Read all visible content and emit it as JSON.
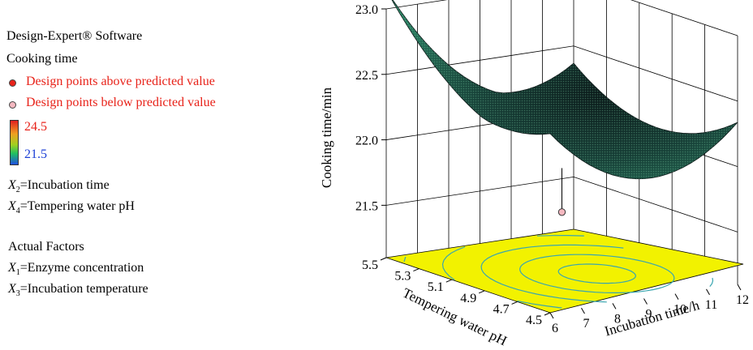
{
  "legend": {
    "software": "Design-Expert® Software",
    "response": "Cooking time",
    "above_label": "Design points above predicted value",
    "below_label": "Design points below predicted value",
    "color_max": "24.5",
    "color_min": "21.5",
    "x2_sym": "X",
    "x2_sub": "2",
    "x2_text": "=Incubation time",
    "x4_sym": "X",
    "x4_sub": "4",
    "x4_text": "=Tempering water pH",
    "actual_factors": "Actual Factors",
    "x1_sym": "X",
    "x1_sub": "1",
    "x1_text": "=Enzyme concentration",
    "x3_sym": "X",
    "x3_sub": "3",
    "x3_text": "=Incubation temperature"
  },
  "colors": {
    "above_point": "#e8231a",
    "below_point": "#f4b8c0",
    "surface_low": "#0b1a1a",
    "surface_high": "#2e8a6a",
    "floor": "#f2f200",
    "contour": "#3aa6b0",
    "label_red": "#e8231a",
    "label_blue": "#1b3fd6"
  },
  "chart_data": {
    "type": "surface3d",
    "title": "",
    "zlabel": "Cooking time/min",
    "xlabel": "Incubation time/h",
    "ylabel": "Tempering water pH",
    "z_ticks": [
      "21.5",
      "22.0",
      "22.5",
      "23.0"
    ],
    "zlim": [
      21.1,
      23.0
    ],
    "x_ticks": [
      "6",
      "7",
      "8",
      "9",
      "10",
      "11",
      "12"
    ],
    "xlim": [
      6,
      12
    ],
    "y_ticks": [
      "4.5",
      "4.7",
      "4.9",
      "5.1",
      "5.3",
      "5.5"
    ],
    "ylim": [
      4.5,
      5.5
    ],
    "surface_corners": [
      {
        "x": 6,
        "y": 5.5,
        "z": 22.65
      },
      {
        "x": 6,
        "y": 4.5,
        "z": 22.1
      },
      {
        "x": 12,
        "y": 4.5,
        "z": 22.4
      },
      {
        "x": 12,
        "y": 5.5,
        "z": 22.45
      }
    ],
    "surface_minimum": {
      "x": 9.6,
      "y": 4.9,
      "z": 21.85
    },
    "design_points": [
      {
        "x": 9,
        "y": 5.0,
        "z": 21.55,
        "position": "below predicted value"
      }
    ],
    "floor_contours": 6,
    "grid": true
  }
}
